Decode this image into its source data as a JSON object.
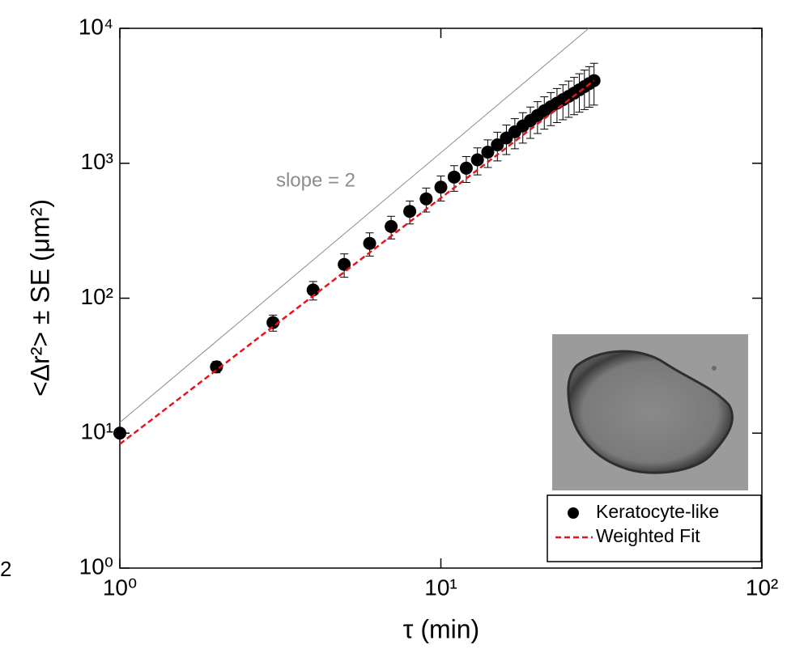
{
  "chart_data": {
    "type": "scatter",
    "xlabel": "τ (min)",
    "ylabel": "<Δr²> ± SE (μm²)",
    "log_x": true,
    "log_y": true,
    "xlim": [
      1,
      100
    ],
    "ylim": [
      1,
      10000
    ],
    "xticks": [
      {
        "value": 1,
        "label": "10⁰"
      },
      {
        "value": 10,
        "label": "10¹"
      },
      {
        "value": 100,
        "label": "10²"
      }
    ],
    "yticks": [
      {
        "value": 1,
        "label": "10⁰"
      },
      {
        "value": 10,
        "label": "10¹"
      },
      {
        "value": 100,
        "label": "10²"
      },
      {
        "value": 1000,
        "label": "10³"
      },
      {
        "value": 10000,
        "label": "10⁴"
      }
    ],
    "legend": "lower right",
    "edge_fragment": "2",
    "series": [
      {
        "name": "Keratocyte-like",
        "color": "#000000",
        "x": [
          1,
          2,
          3,
          4,
          5,
          6,
          7,
          8,
          9,
          10,
          11,
          12,
          13,
          14,
          15,
          16,
          17,
          18,
          19,
          20,
          21,
          22,
          23,
          24,
          25,
          26,
          27,
          28,
          29,
          30
        ],
        "values": [
          10,
          31,
          66,
          115,
          178,
          255,
          340,
          440,
          545,
          665,
          790,
          920,
          1060,
          1210,
          1370,
          1540,
          1710,
          1890,
          2070,
          2260,
          2450,
          2620,
          2790,
          2960,
          3130,
          3310,
          3500,
          3700,
          3900,
          4100
        ],
        "errors": [
          0.5,
          3,
          9,
          18,
          35,
          50,
          65,
          85,
          110,
          140,
          170,
          200,
          240,
          280,
          330,
          380,
          430,
          480,
          540,
          600,
          660,
          720,
          790,
          860,
          940,
          1020,
          1110,
          1200,
          1300,
          1400
        ]
      },
      {
        "name": "Weighted Fit",
        "color": "#e8141a",
        "style": "dashed",
        "x": [
          1,
          30
        ],
        "values": [
          8.3,
          4100
        ]
      }
    ],
    "reference_line": {
      "x": [
        1,
        28.9
      ],
      "values": [
        12,
        10000
      ],
      "color": "#8c8c8c",
      "label": "slope = 2"
    }
  }
}
